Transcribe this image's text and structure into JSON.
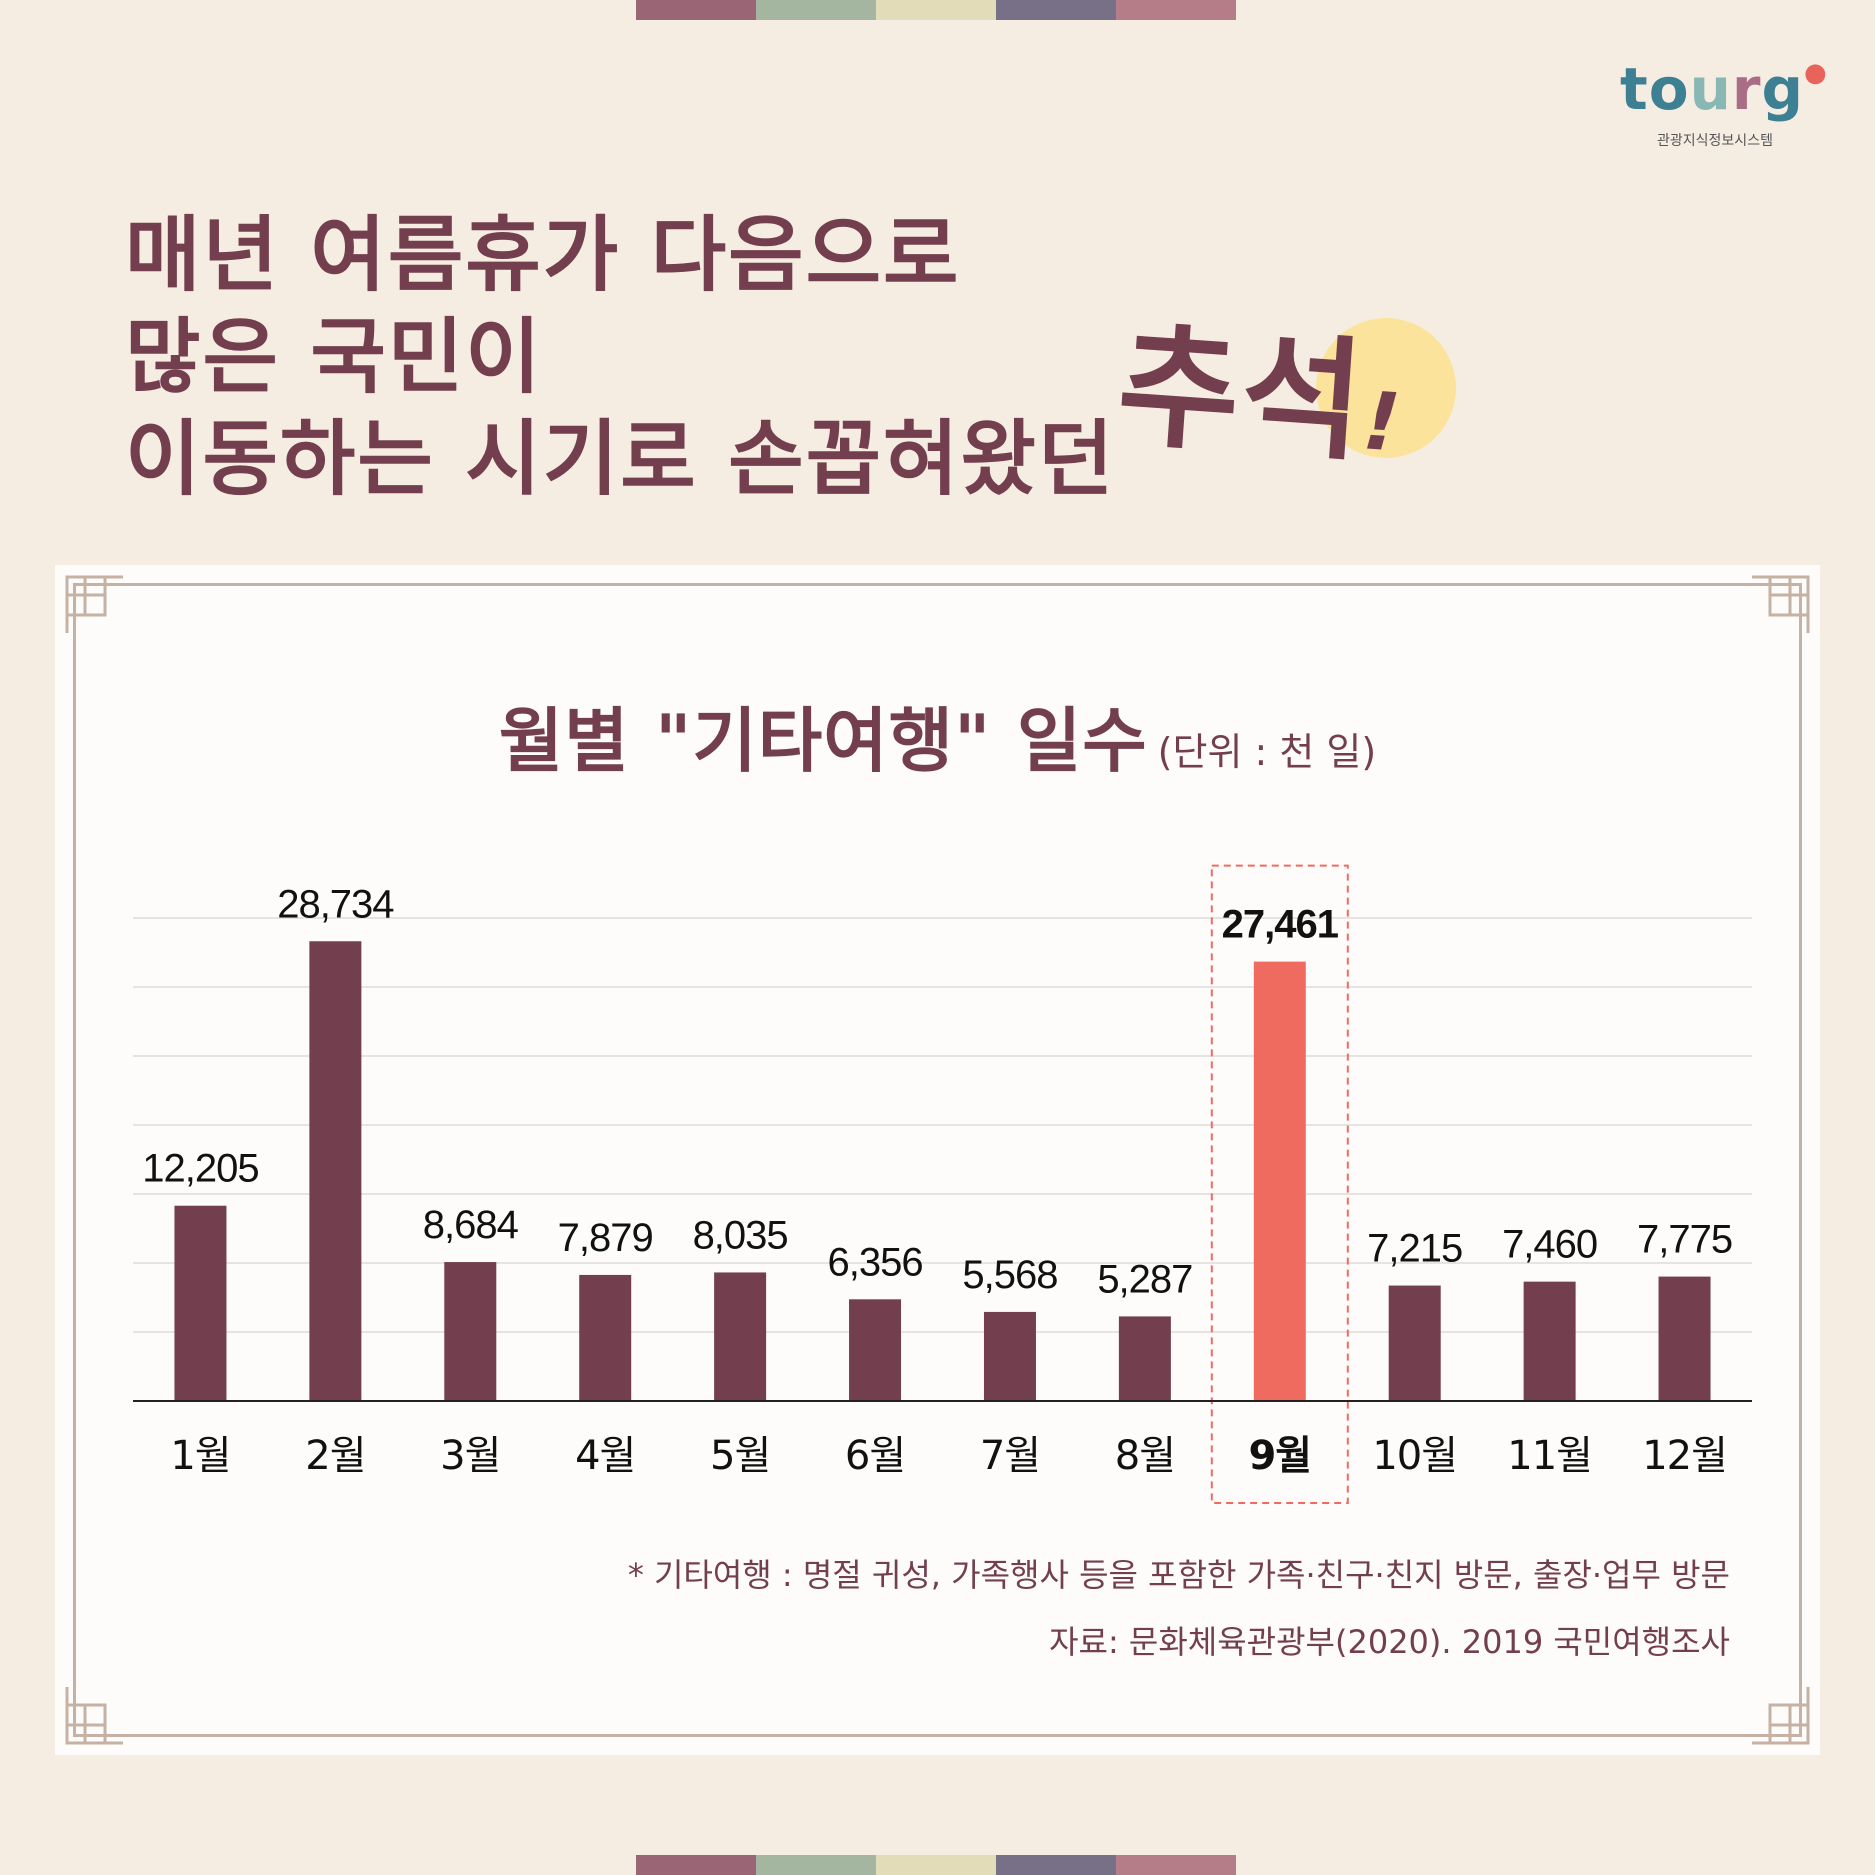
{
  "colors": {
    "stripe": [
      "#9a6676",
      "#a5b6a0",
      "#e3dcb8",
      "#787086",
      "#b57d88"
    ],
    "bar": "#733f4f",
    "highlight": "#ef6b60",
    "text": "#733f4f",
    "moon": "#fce39b"
  },
  "logo": {
    "t": "to",
    "u": "u",
    "r": "r",
    "g": "g",
    "caption": "관광지식정보시스템"
  },
  "headline": {
    "line1": "매년 여름휴가 다음으로",
    "line2": "많은 국민이",
    "line3": "이동하는 시기로 손꼽혀왔던",
    "emphasis": "추석",
    "exclaim": "!"
  },
  "chart": {
    "title": "월별 \"기타여행\" 일수",
    "unit": "(단위 : 천 일)"
  },
  "chart_data": {
    "type": "bar",
    "title": "월별 \"기타여행\" 일수",
    "unit": "(단위 : 천 일)",
    "categories": [
      "1월",
      "2월",
      "3월",
      "4월",
      "5월",
      "6월",
      "7월",
      "8월",
      "9월",
      "10월",
      "11월",
      "12월"
    ],
    "values": [
      12205,
      28734,
      8684,
      7879,
      8035,
      6356,
      5568,
      5287,
      27461,
      7215,
      7460,
      7775
    ],
    "value_labels": [
      "12,205",
      "28,734",
      "8,684",
      "7,879",
      "8,035",
      "6,356",
      "5,568",
      "5,287",
      "27,461",
      "7,215",
      "7,460",
      "7,775"
    ],
    "highlight_index": 8,
    "ylim": [
      0,
      30000
    ],
    "grid": true
  },
  "footnote": "* 기타여행 : 명절 귀성, 가족행사 등을 포함한 가족·친구·친지 방문, 출장·업무 방문",
  "source": "자료: 문화체육관광부(2020). 2019 국민여행조사"
}
